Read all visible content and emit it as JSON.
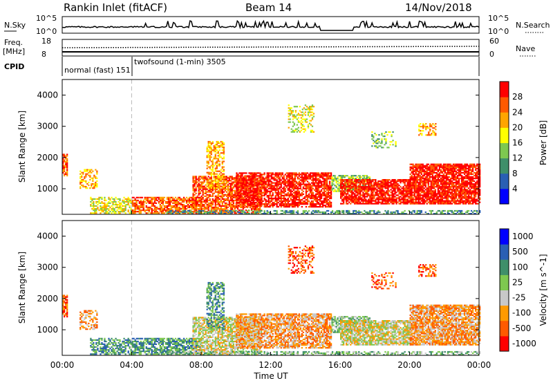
{
  "header": {
    "station": "Rankin Inlet (fitACF)",
    "beam": "Beam 14",
    "date": "14/Nov/2018"
  },
  "top_panels": {
    "nsky_label": "N.Sky",
    "nsky_ticks": [
      "10^5",
      "10^0"
    ],
    "nsearch_label": "N.Search",
    "freq_label_1": "Freq.",
    "freq_label_2": "[MHz]",
    "freq_ticks": [
      "18",
      "8"
    ],
    "nave_label": "Nave",
    "nave_ticks": [
      "60",
      "0"
    ],
    "cpid_label": "CPID",
    "cpid_segments": [
      {
        "text": "normal (fast)  151"
      },
      {
        "text": "twofsound (1-min)  3505"
      }
    ]
  },
  "colors": {
    "power_scale": [
      "#0000ff",
      "#2a5fb4",
      "#3f8f6a",
      "#7ec850",
      "#ffff00",
      "#ffa500",
      "#ff5a00",
      "#ff0000"
    ],
    "velocity_scale": [
      "#ff0000",
      "#ff5a00",
      "#ff9a00",
      "#c8c8c8",
      "#7ec850",
      "#3f8f6a",
      "#2a5fb4",
      "#0000ff"
    ]
  },
  "chart_data": [
    {
      "type": "heatmap",
      "title": "",
      "xlabel": "",
      "ylabel": "Slant Range [km]",
      "x_ticks": [
        "00:00",
        "04:00",
        "08:00",
        "12:00",
        "16:00",
        "20:00",
        "00:00"
      ],
      "y_ticks": [
        "1000",
        "2000",
        "3000",
        "4000"
      ],
      "ylim": [
        180,
        4500
      ],
      "xlim": [
        0,
        24
      ],
      "colorbar_label": "Power [dB]",
      "colorbar_ticks": [
        "4",
        "8",
        "12",
        "16",
        "20",
        "24",
        "28"
      ],
      "colorbar_range": [
        0,
        30
      ]
    },
    {
      "type": "heatmap",
      "title": "",
      "xlabel": "Time UT",
      "ylabel": "Slant Range [km]",
      "x_ticks": [
        "00:00",
        "04:00",
        "08:00",
        "12:00",
        "16:00",
        "20:00",
        "00:00"
      ],
      "y_ticks": [
        "1000",
        "2000",
        "3000",
        "4000"
      ],
      "ylim": [
        180,
        4500
      ],
      "xlim": [
        0,
        24
      ],
      "colorbar_label": "Velocity [m s^-1]",
      "colorbar_ticks": [
        "1000",
        "500",
        "100",
        "25",
        "-25",
        "-100",
        "-500",
        "-1000"
      ]
    }
  ]
}
